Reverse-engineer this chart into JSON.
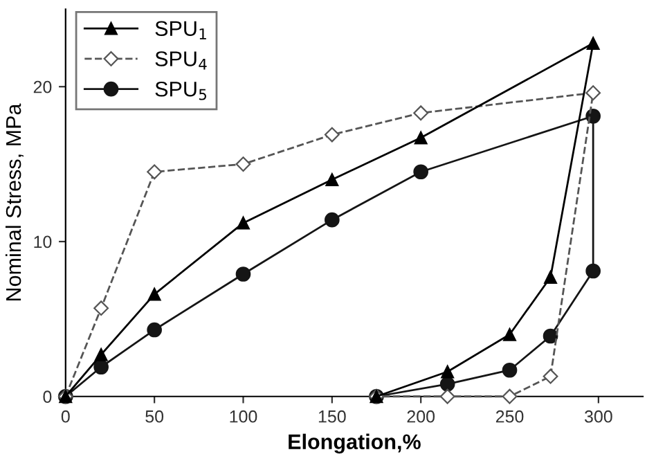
{
  "chart_data": {
    "type": "line",
    "xlabel": "Elongation,%",
    "ylabel": "Nominal Stress, MPa",
    "xlim": [
      0,
      325
    ],
    "ylim": [
      0,
      25
    ],
    "xticks": [
      0,
      50,
      100,
      150,
      200,
      250,
      300
    ],
    "yticks": [
      0,
      10,
      20
    ],
    "grid": false,
    "legend": "top left",
    "series": [
      {
        "name": "SPU$_{1}$",
        "color": "#000000",
        "marker": "triangle",
        "line_style": "solid",
        "x": [
          0,
          20,
          50,
          100,
          150,
          200,
          297,
          273,
          250,
          215,
          175
        ],
        "values": [
          0,
          2.7,
          6.6,
          11.2,
          14,
          16.7,
          22.8,
          7.7,
          4.0,
          1.6,
          0
        ]
      },
      {
        "name": "SPU$_{4}$",
        "color": "#555555",
        "marker": "diamond",
        "line_style": "dashed",
        "x": [
          0,
          20,
          50,
          100,
          150,
          200,
          297,
          273,
          250,
          215,
          175
        ],
        "values": [
          0,
          5.7,
          14.5,
          15,
          16.9,
          18.3,
          19.6,
          1.3,
          0,
          0,
          0
        ]
      },
      {
        "name": "SPU$_{5}$",
        "color": "#151515",
        "marker": "circle",
        "line_style": "solid",
        "x": [
          0,
          20,
          50,
          100,
          150,
          200,
          297,
          297,
          273,
          250,
          215,
          175
        ],
        "values": [
          0,
          1.9,
          4.3,
          7.9,
          11.4,
          14.5,
          18.1,
          8.1,
          3.9,
          1.7,
          0.8,
          0
        ]
      }
    ]
  }
}
